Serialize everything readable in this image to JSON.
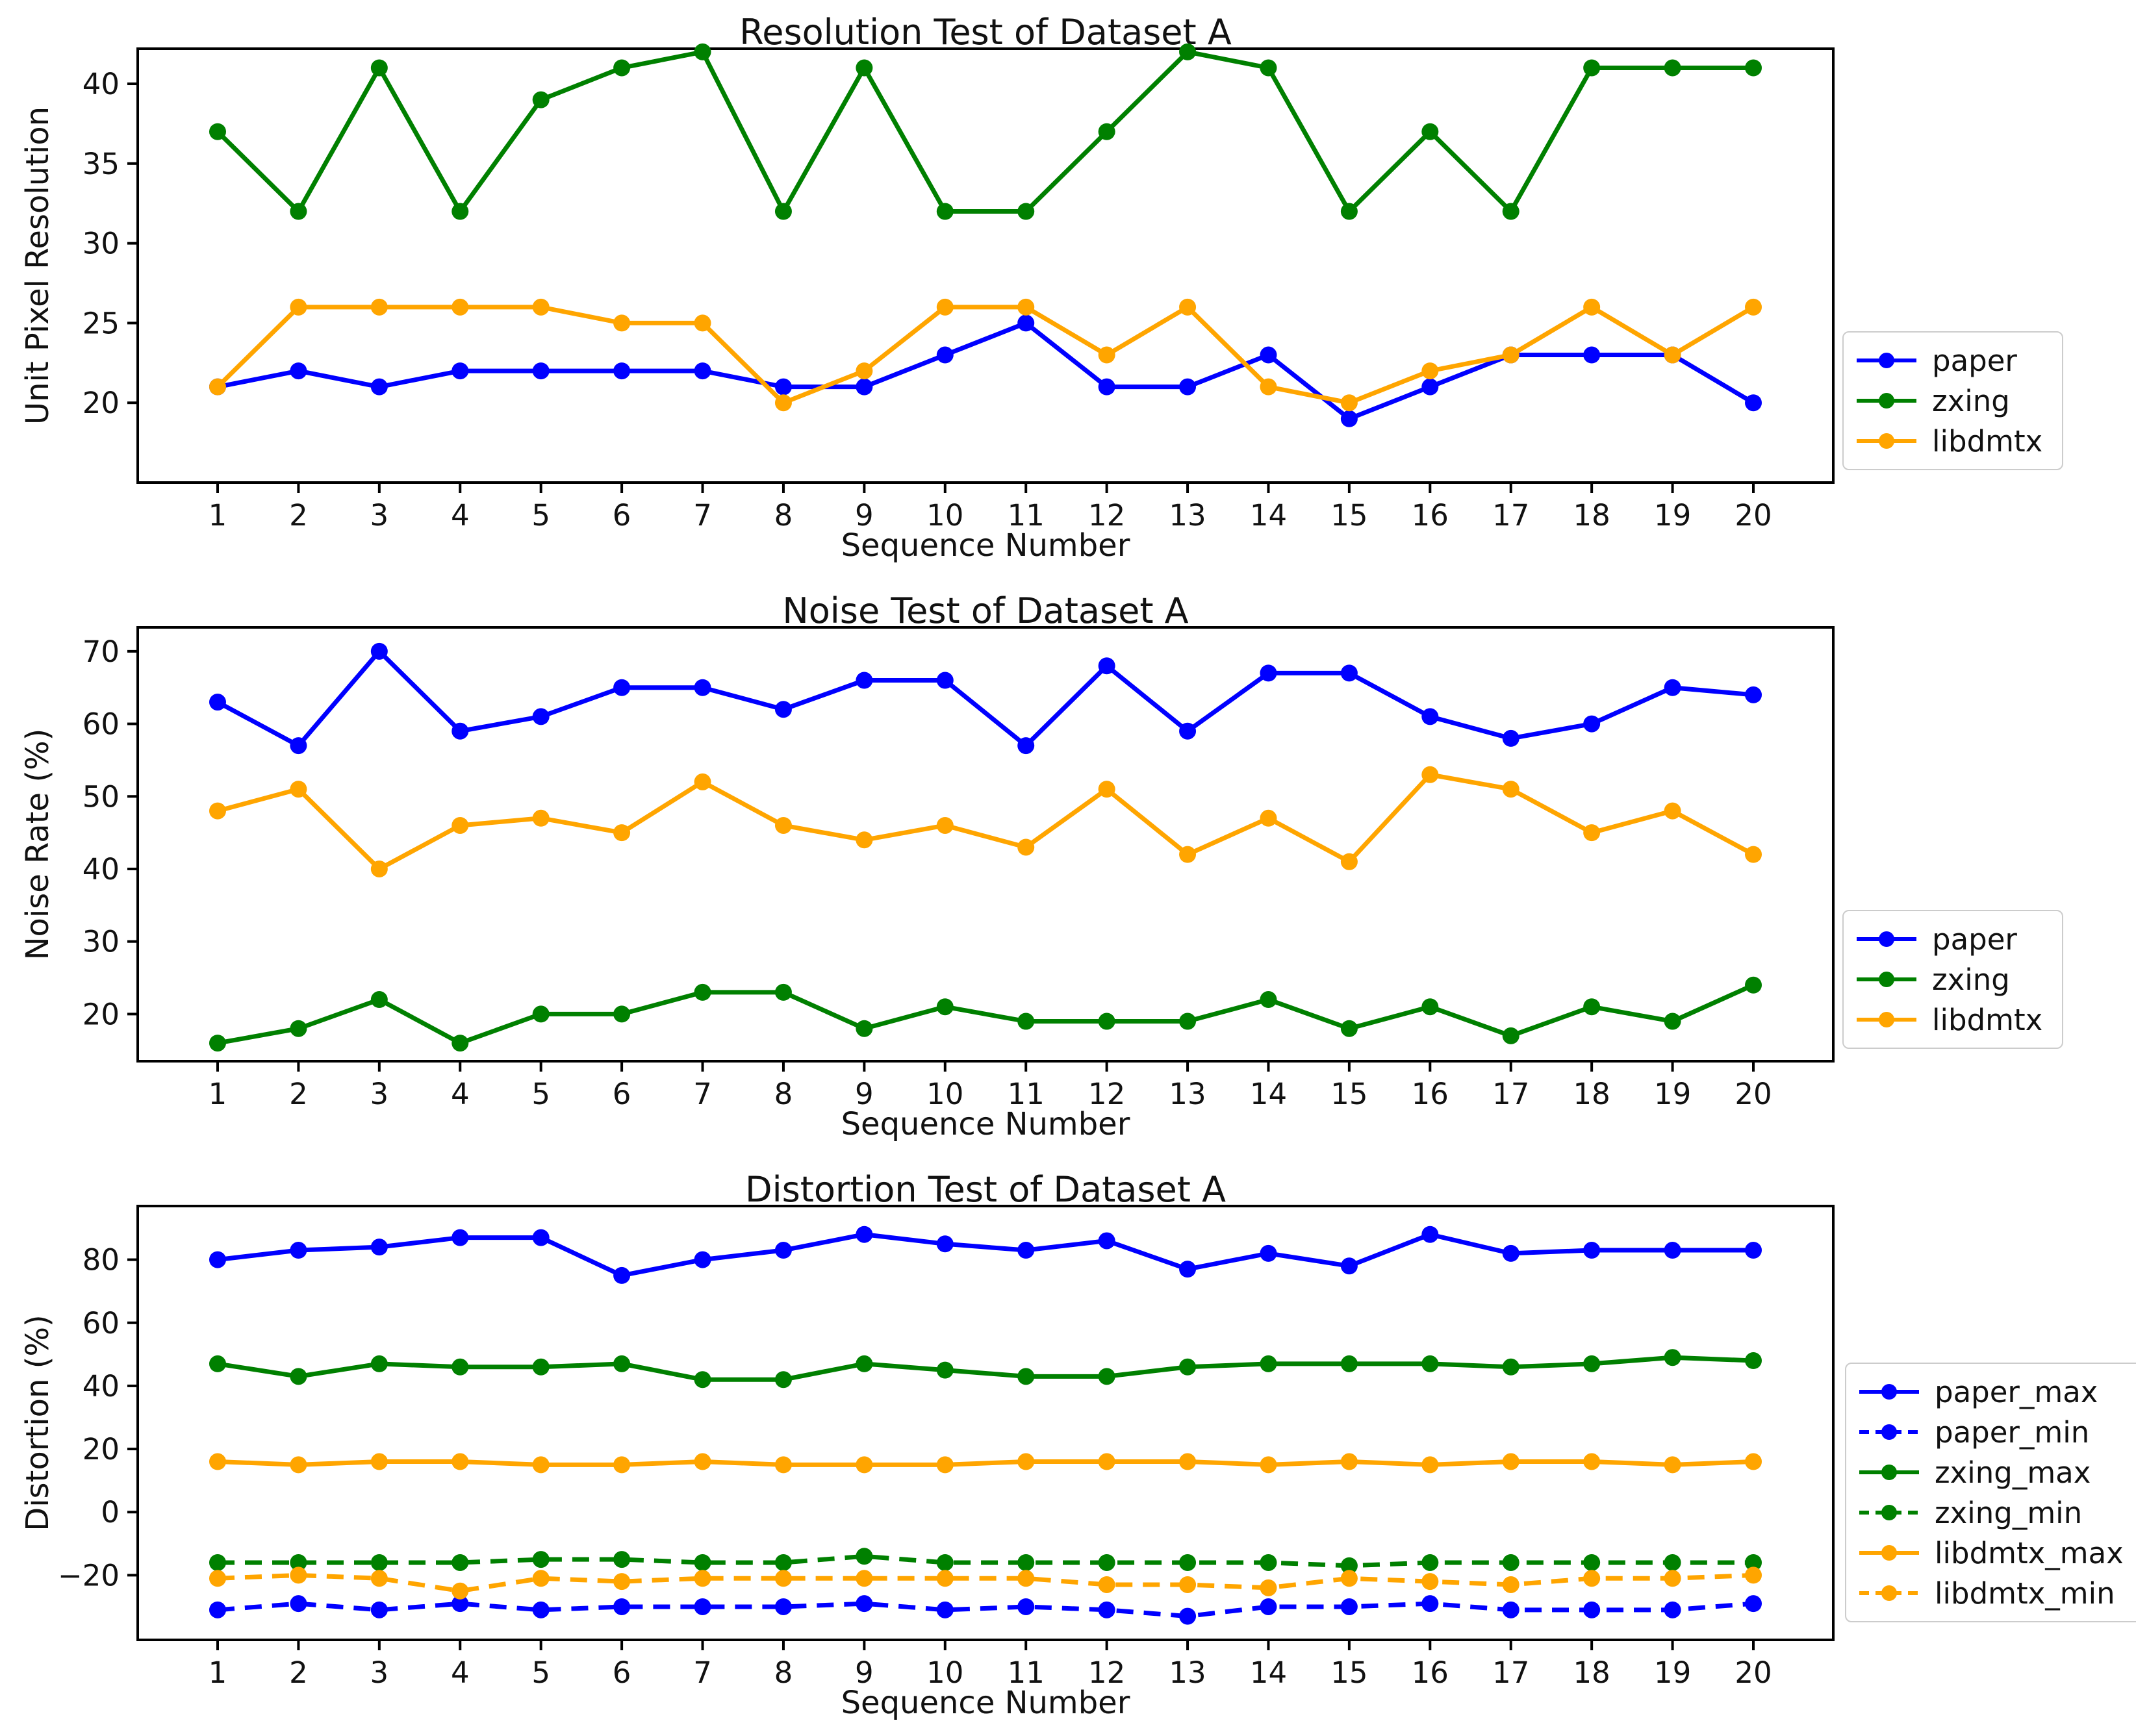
{
  "chart_data": [
    {
      "type": "line",
      "title": "Resolution Test of Dataset A",
      "xlabel": "Sequence Number",
      "ylabel": "Unit Pixel Resolution",
      "x": [
        1,
        2,
        3,
        4,
        5,
        6,
        7,
        8,
        9,
        10,
        11,
        12,
        13,
        14,
        15,
        16,
        17,
        18,
        19,
        20
      ],
      "yticks": [
        20,
        25,
        30,
        35,
        40
      ],
      "ylim": [
        15.0,
        42.2
      ],
      "grid": false,
      "legend_position": "center-right-outside",
      "series": [
        {
          "name": "paper",
          "color": "#0000ff",
          "style": "solid",
          "values": [
            21,
            22,
            21,
            22,
            22,
            22,
            22,
            21,
            21,
            23,
            25,
            21,
            21,
            23,
            19,
            21,
            23,
            23,
            23,
            20
          ]
        },
        {
          "name": "zxing",
          "color": "#008000",
          "style": "solid",
          "values": [
            37,
            32,
            41,
            32,
            39,
            41,
            42,
            32,
            41,
            32,
            32,
            37,
            42,
            41,
            32,
            37,
            32,
            41,
            41,
            41
          ]
        },
        {
          "name": "libdmtx",
          "color": "#ffa500",
          "style": "solid",
          "values": [
            21,
            26,
            26,
            26,
            26,
            25,
            25,
            20,
            22,
            26,
            26,
            23,
            26,
            21,
            20,
            22,
            23,
            26,
            23,
            26
          ]
        }
      ]
    },
    {
      "type": "line",
      "title": "Noise Test of Dataset A",
      "xlabel": "Sequence Number",
      "ylabel": "Noise Rate (%)",
      "x": [
        1,
        2,
        3,
        4,
        5,
        6,
        7,
        8,
        9,
        10,
        11,
        12,
        13,
        14,
        15,
        16,
        17,
        18,
        19,
        20
      ],
      "yticks": [
        20,
        30,
        40,
        50,
        60,
        70
      ],
      "ylim": [
        13.5,
        73.3
      ],
      "grid": false,
      "legend_position": "center-right-outside",
      "series": [
        {
          "name": "paper",
          "color": "#0000ff",
          "style": "solid",
          "values": [
            63,
            57,
            70,
            59,
            61,
            65,
            65,
            62,
            66,
            66,
            57,
            68,
            59,
            67,
            67,
            61,
            58,
            60,
            65,
            64
          ]
        },
        {
          "name": "zxing",
          "color": "#008000",
          "style": "solid",
          "values": [
            16,
            18,
            22,
            16,
            20,
            20,
            23,
            23,
            18,
            21,
            19,
            19,
            19,
            22,
            18,
            21,
            17,
            21,
            19,
            24
          ]
        },
        {
          "name": "libdmtx",
          "color": "#ffa500",
          "style": "solid",
          "values": [
            48,
            51,
            40,
            46,
            47,
            45,
            52,
            46,
            44,
            46,
            43,
            51,
            42,
            47,
            41,
            53,
            51,
            45,
            48,
            42
          ]
        }
      ]
    },
    {
      "type": "line",
      "title": "Distortion Test of Dataset A",
      "xlabel": "Sequence Number",
      "ylabel": "Distortion (%)",
      "x": [
        1,
        2,
        3,
        4,
        5,
        6,
        7,
        8,
        9,
        10,
        11,
        12,
        13,
        14,
        15,
        16,
        17,
        18,
        19,
        20
      ],
      "yticks": [
        -20,
        0,
        20,
        40,
        60,
        80
      ],
      "ylim": [
        -40.5,
        97.0
      ],
      "grid": false,
      "legend_position": "center-right-outside",
      "series": [
        {
          "name": "paper_max",
          "color": "#0000ff",
          "style": "solid",
          "values": [
            80,
            83,
            84,
            87,
            87,
            75,
            80,
            83,
            88,
            85,
            83,
            86,
            77,
            82,
            78,
            88,
            82,
            83,
            83,
            83
          ]
        },
        {
          "name": "paper_min",
          "color": "#0000ff",
          "style": "dashed",
          "values": [
            -31,
            -29,
            -31,
            -29,
            -31,
            -30,
            -30,
            -30,
            -29,
            -31,
            -30,
            -31,
            -33,
            -30,
            -30,
            -29,
            -31,
            -31,
            -31,
            -29
          ]
        },
        {
          "name": "zxing_max",
          "color": "#008000",
          "style": "solid",
          "values": [
            47,
            43,
            47,
            46,
            46,
            47,
            42,
            42,
            47,
            45,
            43,
            43,
            46,
            47,
            47,
            47,
            46,
            47,
            49,
            48
          ]
        },
        {
          "name": "zxing_min",
          "color": "#008000",
          "style": "dashed",
          "values": [
            -16,
            -16,
            -16,
            -16,
            -15,
            -15,
            -16,
            -16,
            -14,
            -16,
            -16,
            -16,
            -16,
            -16,
            -17,
            -16,
            -16,
            -16,
            -16,
            -16
          ]
        },
        {
          "name": "libdmtx_max",
          "color": "#ffa500",
          "style": "solid",
          "values": [
            16,
            15,
            16,
            16,
            15,
            15,
            16,
            15,
            15,
            15,
            16,
            16,
            16,
            15,
            16,
            15,
            16,
            16,
            15,
            16
          ]
        },
        {
          "name": "libdmtx_min",
          "color": "#ffa500",
          "style": "dashed",
          "values": [
            -21,
            -20,
            -21,
            -25,
            -21,
            -22,
            -21,
            -21,
            -21,
            -21,
            -21,
            -23,
            -23,
            -24,
            -21,
            -22,
            -23,
            -21,
            -21,
            -20
          ]
        }
      ]
    }
  ]
}
